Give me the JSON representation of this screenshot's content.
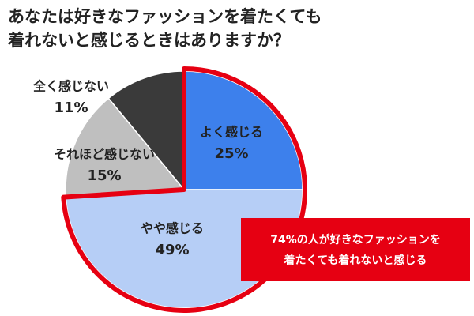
{
  "chart_data": {
    "type": "pie",
    "title": [
      "あなたは好きなファッションを着たくても",
      "着れないと感じるときはありますか？"
    ],
    "categories": [
      "よく感じる",
      "やや感じる",
      "それほど感じない",
      "全く感じない"
    ],
    "values": [
      25,
      49,
      15,
      11
    ],
    "value_labels": [
      "25%",
      "49%",
      "15%",
      "11%"
    ],
    "colors": [
      "#3d80ec",
      "#b6cef6",
      "#bfbfbf",
      "#3a3a3a"
    ],
    "annotation": [
      "74%の人が好きなファッションを",
      "着たくても着れないと感じる"
    ]
  }
}
